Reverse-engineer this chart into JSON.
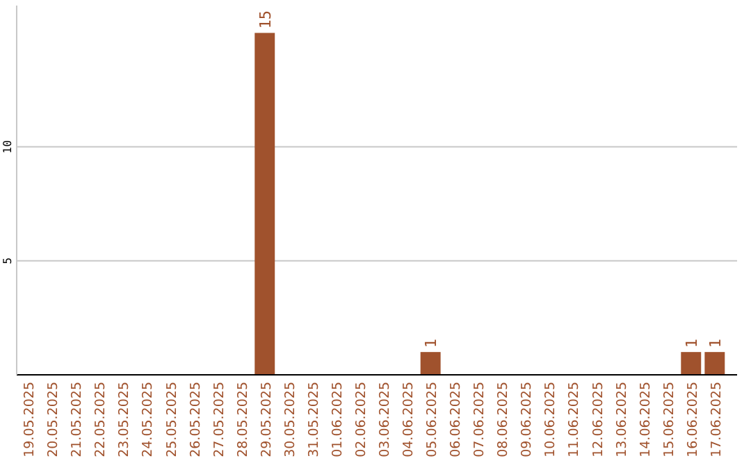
{
  "chart_data": {
    "type": "bar",
    "categories": [
      "19.05.2025",
      "20.05.2025",
      "21.05.2025",
      "22.05.2025",
      "23.05.2025",
      "24.05.2025",
      "25.05.2025",
      "26.05.2025",
      "27.05.2025",
      "28.05.2025",
      "29.05.2025",
      "30.05.2025",
      "31.05.2025",
      "01.06.2025",
      "02.06.2025",
      "03.06.2025",
      "04.06.2025",
      "05.06.2025",
      "06.06.2025",
      "07.06.2025",
      "08.06.2025",
      "09.06.2025",
      "10.06.2025",
      "11.06.2025",
      "12.06.2025",
      "13.06.2025",
      "14.06.2025",
      "15.06.2025",
      "16.06.2025",
      "17.06.2025"
    ],
    "values": [
      0,
      0,
      0,
      0,
      0,
      0,
      0,
      0,
      0,
      0,
      15,
      0,
      0,
      0,
      0,
      0,
      0,
      1,
      0,
      0,
      0,
      0,
      0,
      0,
      0,
      0,
      0,
      0,
      1,
      1
    ],
    "value_labels": [
      null,
      null,
      null,
      null,
      null,
      null,
      null,
      null,
      null,
      null,
      "15",
      null,
      null,
      null,
      null,
      null,
      null,
      "1",
      null,
      null,
      null,
      null,
      null,
      null,
      null,
      null,
      null,
      null,
      "1",
      "1"
    ],
    "color": "#a0522d",
    "ylim": [
      0,
      16.2
    ],
    "yticks": [
      5,
      10
    ],
    "grid": "y"
  }
}
